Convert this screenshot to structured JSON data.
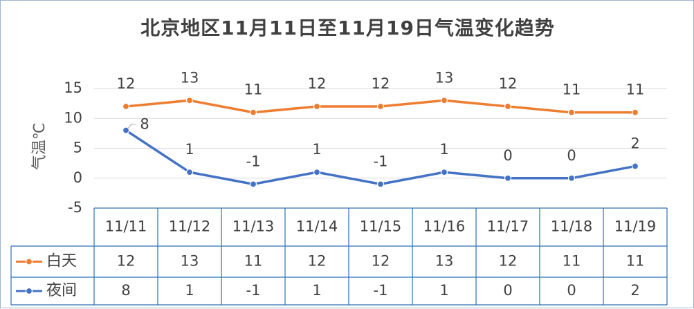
{
  "chart_data": {
    "type": "line",
    "title": "北京地区11月11日至11月19日气温变化趋势",
    "ylabel": "气温℃",
    "xlabel": "",
    "categories": [
      "11/11",
      "11/12",
      "11/13",
      "11/14",
      "11/15",
      "11/16",
      "11/17",
      "11/18",
      "11/19"
    ],
    "ylim": [
      -5,
      15
    ],
    "yticks": [
      -5,
      0,
      5,
      10,
      15
    ],
    "grid": true,
    "data_table": true,
    "series": [
      {
        "name": "白天",
        "color": "#ed7d31",
        "values": [
          12,
          13,
          11,
          12,
          12,
          13,
          12,
          11,
          11
        ]
      },
      {
        "name": "夜间",
        "color": "#4472c4",
        "values": [
          8,
          1,
          -1,
          1,
          -1,
          1,
          0,
          0,
          2
        ]
      }
    ]
  }
}
